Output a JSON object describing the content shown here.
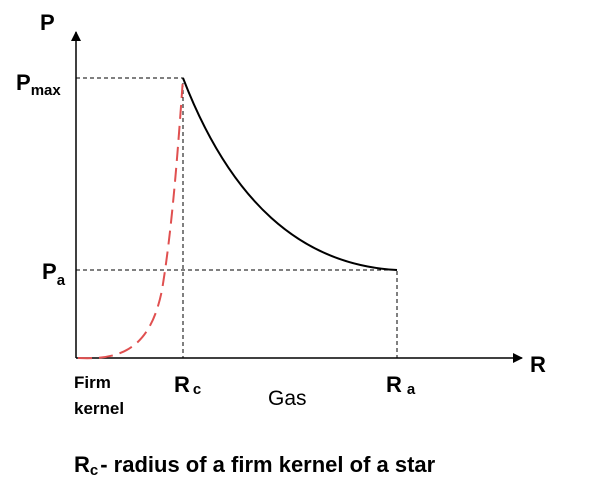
{
  "axes": {
    "y_label": "P",
    "x_label": "R"
  },
  "levels": [
    {
      "base": "P",
      "sub": "max"
    },
    {
      "base": "P",
      "sub": "a"
    }
  ],
  "radii": [
    {
      "base": "R",
      "sub": "c"
    },
    {
      "base": "R",
      "sub": "a"
    }
  ],
  "regions": {
    "kernel": [
      "Firm",
      "kernel"
    ],
    "gas": "Gas"
  },
  "caption": {
    "base": "R",
    "sub": "c",
    "text": "- radius of a firm kernel of a star"
  }
}
